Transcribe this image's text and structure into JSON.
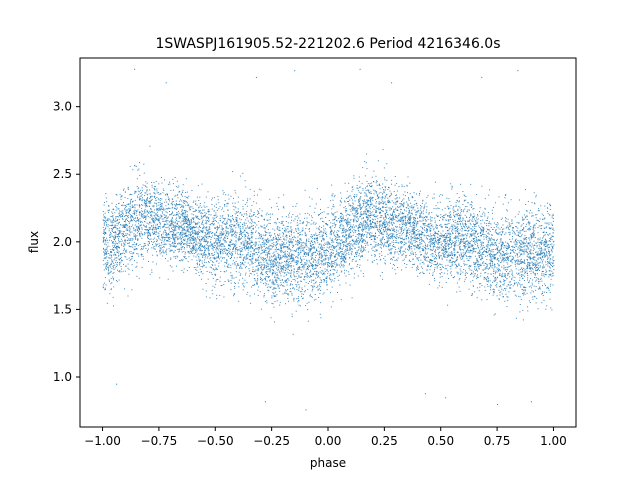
{
  "chart_data": {
    "type": "scatter",
    "title": "1SWASPJ161905.52-221202.6 Period 4216346.0s",
    "xlabel": "phase",
    "ylabel": "flux",
    "xlim": [
      -1.1,
      1.1
    ],
    "ylim": [
      0.63,
      3.36
    ],
    "x_ticks": [
      -1.0,
      -0.75,
      -0.5,
      -0.25,
      0.0,
      0.25,
      0.5,
      0.75,
      1.0
    ],
    "x_tick_labels": [
      "−1.00",
      "−0.75",
      "−0.50",
      "−0.25",
      "0.00",
      "0.25",
      "0.50",
      "0.75",
      "1.00"
    ],
    "y_ticks": [
      1.0,
      1.5,
      2.0,
      2.5,
      3.0
    ],
    "y_tick_labels": [
      "1.0",
      "1.5",
      "2.0",
      "2.5",
      "3.0"
    ],
    "grid": false,
    "legend": "none",
    "marker_color": "#1f77b4",
    "x_range_of_data": [
      -1.0,
      1.0
    ],
    "series": [
      {
        "values": [
          {
            "x": -1.0,
            "y": 1.98
          },
          {
            "x": -0.95,
            "y": 2.0
          },
          {
            "x": -0.9,
            "y": 2.08
          },
          {
            "x": -0.85,
            "y": 2.16
          },
          {
            "x": -0.8,
            "y": 2.18
          },
          {
            "x": -0.75,
            "y": 2.14
          },
          {
            "x": -0.7,
            "y": 2.12
          },
          {
            "x": -0.65,
            "y": 2.12
          },
          {
            "x": -0.6,
            "y": 2.06
          },
          {
            "x": -0.55,
            "y": 2.02
          },
          {
            "x": -0.5,
            "y": 2.0
          },
          {
            "x": -0.45,
            "y": 2.03
          },
          {
            "x": -0.4,
            "y": 2.02
          },
          {
            "x": -0.35,
            "y": 1.98
          },
          {
            "x": -0.3,
            "y": 1.92
          },
          {
            "x": -0.25,
            "y": 1.88
          },
          {
            "x": -0.2,
            "y": 1.9
          },
          {
            "x": -0.15,
            "y": 1.88
          },
          {
            "x": -0.1,
            "y": 1.92
          },
          {
            "x": -0.05,
            "y": 1.9
          },
          {
            "x": 0.0,
            "y": 1.95
          },
          {
            "x": 0.05,
            "y": 2.0
          },
          {
            "x": 0.1,
            "y": 2.08
          },
          {
            "x": 0.15,
            "y": 2.16
          },
          {
            "x": 0.2,
            "y": 2.18
          },
          {
            "x": 0.25,
            "y": 2.14
          },
          {
            "x": 0.3,
            "y": 2.12
          },
          {
            "x": 0.35,
            "y": 2.12
          },
          {
            "x": 0.4,
            "y": 2.06
          },
          {
            "x": 0.45,
            "y": 2.02
          },
          {
            "x": 0.5,
            "y": 2.0
          },
          {
            "x": 0.55,
            "y": 2.03
          },
          {
            "x": 0.6,
            "y": 2.02
          },
          {
            "x": 0.65,
            "y": 1.98
          },
          {
            "x": 0.7,
            "y": 1.92
          },
          {
            "x": 0.75,
            "y": 1.88
          },
          {
            "x": 0.8,
            "y": 1.9
          },
          {
            "x": 0.85,
            "y": 1.88
          },
          {
            "x": 0.9,
            "y": 1.92
          },
          {
            "x": 0.95,
            "y": 1.9
          },
          {
            "x": 1.0,
            "y": 1.95
          }
        ],
        "spread": [
          0.45,
          0.4,
          0.38,
          0.42,
          0.4,
          0.38,
          0.36,
          0.35,
          0.33,
          0.36,
          0.38,
          0.4,
          0.42,
          0.4,
          0.42,
          0.44,
          0.4,
          0.42,
          0.44,
          0.42,
          0.4,
          0.4,
          0.38,
          0.42,
          0.4,
          0.38,
          0.36,
          0.35,
          0.33,
          0.36,
          0.38,
          0.4,
          0.42,
          0.4,
          0.42,
          0.44,
          0.4,
          0.42,
          0.44,
          0.42,
          0.45
        ],
        "outliers": [
          {
            "x": -0.86,
            "y": 3.28
          },
          {
            "x": -0.72,
            "y": 3.18
          },
          {
            "x": -0.32,
            "y": 3.22
          },
          {
            "x": -0.15,
            "y": 3.27
          },
          {
            "x": 0.14,
            "y": 3.28
          },
          {
            "x": 0.28,
            "y": 3.18
          },
          {
            "x": 0.68,
            "y": 3.22
          },
          {
            "x": 0.84,
            "y": 3.27
          },
          {
            "x": -0.28,
            "y": 0.82
          },
          {
            "x": -0.1,
            "y": 0.76
          },
          {
            "x": 0.52,
            "y": 0.85
          },
          {
            "x": 0.75,
            "y": 0.8
          },
          {
            "x": 0.9,
            "y": 0.82
          },
          {
            "x": -0.94,
            "y": 0.95
          },
          {
            "x": 0.43,
            "y": 0.88
          }
        ]
      }
    ]
  }
}
